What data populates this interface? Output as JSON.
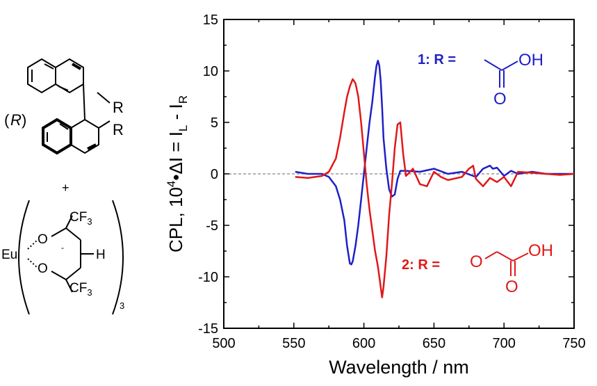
{
  "chart_data": {
    "type": "line",
    "title": "",
    "xlabel": "Wavelength / nm",
    "ylabel": {
      "prefix": "CPL, 10",
      "sup": "4",
      "middle": "•ΔI = I",
      "sub1": "L",
      "dash": " - I",
      "sub2": "R"
    },
    "xlim": [
      500,
      750
    ],
    "ylim": [
      -15,
      15
    ],
    "xticks": [
      500,
      550,
      600,
      650,
      700,
      750
    ],
    "yticks": [
      -15,
      -10,
      -5,
      0,
      5,
      10,
      15
    ],
    "grid": false,
    "zero_line": true,
    "series": [
      {
        "name": "1",
        "color": "#1f1fc8",
        "x": [
          551,
          560,
          570,
          575,
          580,
          583,
          586,
          588,
          590,
          591,
          592,
          594,
          596,
          598,
          600,
          602,
          604,
          606,
          608,
          609,
          610,
          611,
          612,
          613,
          614,
          616,
          618,
          620,
          622,
          624,
          626,
          630,
          640,
          650,
          660,
          670,
          680,
          685,
          690,
          692,
          695,
          700,
          705,
          710,
          720,
          730,
          740,
          750
        ],
        "y": [
          0.2,
          0.0,
          0.0,
          -0.3,
          -1.2,
          -2.5,
          -4.5,
          -7.0,
          -8.7,
          -8.8,
          -8.5,
          -7.0,
          -5.0,
          -2.5,
          0.0,
          2.5,
          5.0,
          7.0,
          9.5,
          10.5,
          11.0,
          10.5,
          9.0,
          6.5,
          3.5,
          0.5,
          -1.5,
          -2.2,
          -2.0,
          -0.5,
          0.3,
          0.3,
          0.2,
          0.5,
          0.0,
          0.2,
          -0.3,
          0.5,
          0.8,
          0.5,
          0.6,
          -0.2,
          0.3,
          0.0,
          0.2,
          0.0,
          0.0,
          0.0
        ]
      },
      {
        "name": "2",
        "color": "#e01818",
        "x": [
          551,
          560,
          570,
          575,
          580,
          583,
          586,
          588,
          590,
          592,
          594,
          596,
          598,
          600,
          602,
          604,
          606,
          608,
          610,
          612,
          613,
          614,
          616,
          618,
          620,
          622,
          624,
          626,
          628,
          630,
          635,
          640,
          645,
          650,
          655,
          660,
          670,
          675,
          678,
          680,
          685,
          690,
          695,
          700,
          705,
          710,
          720,
          730,
          740,
          750
        ],
        "y": [
          -0.3,
          -0.4,
          -0.2,
          0.2,
          1.5,
          3.5,
          6.0,
          7.5,
          8.5,
          9.2,
          8.8,
          7.5,
          5.0,
          2.0,
          -1.0,
          -3.5,
          -5.5,
          -7.5,
          -9.0,
          -11.0,
          -12.0,
          -11.0,
          -8.0,
          -4.0,
          -1.0,
          2.5,
          4.8,
          5.0,
          2.0,
          -0.2,
          0.5,
          -1.0,
          -1.2,
          0.2,
          -0.3,
          -0.6,
          -0.3,
          0.5,
          0.8,
          -0.5,
          -1.2,
          -0.4,
          -0.8,
          -0.3,
          -1.2,
          0.2,
          0.1,
          0.0,
          -0.1,
          0.0
        ]
      }
    ],
    "annotations": [
      {
        "label": "1: R =",
        "color": "#1f1fc8"
      },
      {
        "label": "2: R =",
        "color": "#e01818"
      }
    ]
  },
  "structures": {
    "r_label": "R",
    "plus": "+",
    "eu": "Eu",
    "o": "O",
    "h": "H",
    "oh": "OH",
    "cf3_main": "CF",
    "cf3_sub": "3",
    "charge": "-",
    "count_sub": "3",
    "config_open": "(",
    "config_letter": "R",
    "config_close": ")"
  }
}
